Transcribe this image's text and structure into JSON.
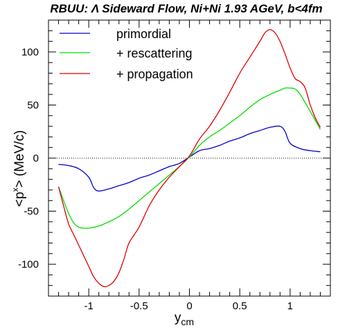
{
  "chart_data": {
    "type": "line",
    "title": "RBUU: Λ Sideward Flow, Ni+Ni 1.93 AGeV, b<4fm",
    "xlabel": "y",
    "xlabel_sub": "cm",
    "ylabel_pre": "<p",
    "ylabel_sup": "x",
    "ylabel_post": "> (MeV/c)",
    "xlim": [
      -1.4,
      1.4
    ],
    "ylim": [
      -130,
      130
    ],
    "xticks": [
      -1,
      -0.5,
      0,
      0.5,
      1
    ],
    "xtick_labels": [
      "-1",
      "-0.5",
      "0",
      "0.5",
      "1"
    ],
    "yticks": [
      -100,
      -50,
      0,
      50,
      100
    ],
    "ytick_labels": [
      "-100",
      "-50",
      "0",
      "50",
      "100"
    ],
    "reference_line": 0,
    "grid": false,
    "legend_position": "top-left",
    "series": [
      {
        "name": "primordial",
        "color": "#0000cc",
        "x": [
          -1.3,
          -1.2,
          -1.1,
          -1.0,
          -0.95,
          -0.9,
          -0.8,
          -0.7,
          -0.6,
          -0.5,
          -0.4,
          -0.3,
          -0.2,
          -0.1,
          0.0,
          0.1,
          0.2,
          0.3,
          0.4,
          0.5,
          0.6,
          0.7,
          0.8,
          0.9,
          0.95,
          1.0,
          1.1,
          1.2,
          1.3
        ],
        "y": [
          -6,
          -7,
          -10,
          -18,
          -28,
          -31,
          -29,
          -26,
          -23,
          -19,
          -16,
          -12,
          -8,
          -5,
          1,
          7,
          9,
          12,
          16,
          19,
          23,
          26,
          29,
          30,
          25,
          14,
          9,
          7,
          6
        ]
      },
      {
        "name": "+ rescattering",
        "color": "#00dd00",
        "x": [
          -1.3,
          -1.25,
          -1.2,
          -1.15,
          -1.1,
          -1.05,
          -1.0,
          -0.9,
          -0.8,
          -0.7,
          -0.6,
          -0.5,
          -0.4,
          -0.3,
          -0.2,
          -0.1,
          0.0,
          0.1,
          0.2,
          0.3,
          0.4,
          0.5,
          0.6,
          0.7,
          0.8,
          0.9,
          0.95,
          1.0,
          1.05,
          1.1,
          1.2,
          1.3
        ],
        "y": [
          -27,
          -40,
          -52,
          -61,
          -65,
          -66,
          -66,
          -64,
          -60,
          -55,
          -48,
          -40,
          -32,
          -24,
          -16,
          -8,
          1,
          12,
          20,
          26,
          33,
          40,
          48,
          55,
          60,
          64,
          66,
          66,
          65,
          60,
          44,
          27
        ]
      },
      {
        "name": "+ propagation",
        "color": "#dd0000",
        "x": [
          -1.3,
          -1.25,
          -1.2,
          -1.15,
          -1.1,
          -1.05,
          -1.0,
          -0.95,
          -0.9,
          -0.85,
          -0.8,
          -0.75,
          -0.7,
          -0.65,
          -0.6,
          -0.5,
          -0.4,
          -0.3,
          -0.2,
          -0.1,
          0.0,
          0.1,
          0.2,
          0.3,
          0.4,
          0.5,
          0.6,
          0.7,
          0.75,
          0.8,
          0.85,
          0.9,
          0.95,
          1.0,
          1.05,
          1.1,
          1.15,
          1.2,
          1.25,
          1.3
        ],
        "y": [
          -27,
          -45,
          -62,
          -72,
          -82,
          -92,
          -102,
          -112,
          -118,
          -121,
          -120,
          -116,
          -108,
          -95,
          -80,
          -65,
          -45,
          -30,
          -18,
          -8,
          2,
          18,
          30,
          45,
          62,
          80,
          95,
          110,
          118,
          121,
          118,
          110,
          98,
          85,
          75,
          72,
          66,
          50,
          38,
          29
        ]
      }
    ]
  }
}
